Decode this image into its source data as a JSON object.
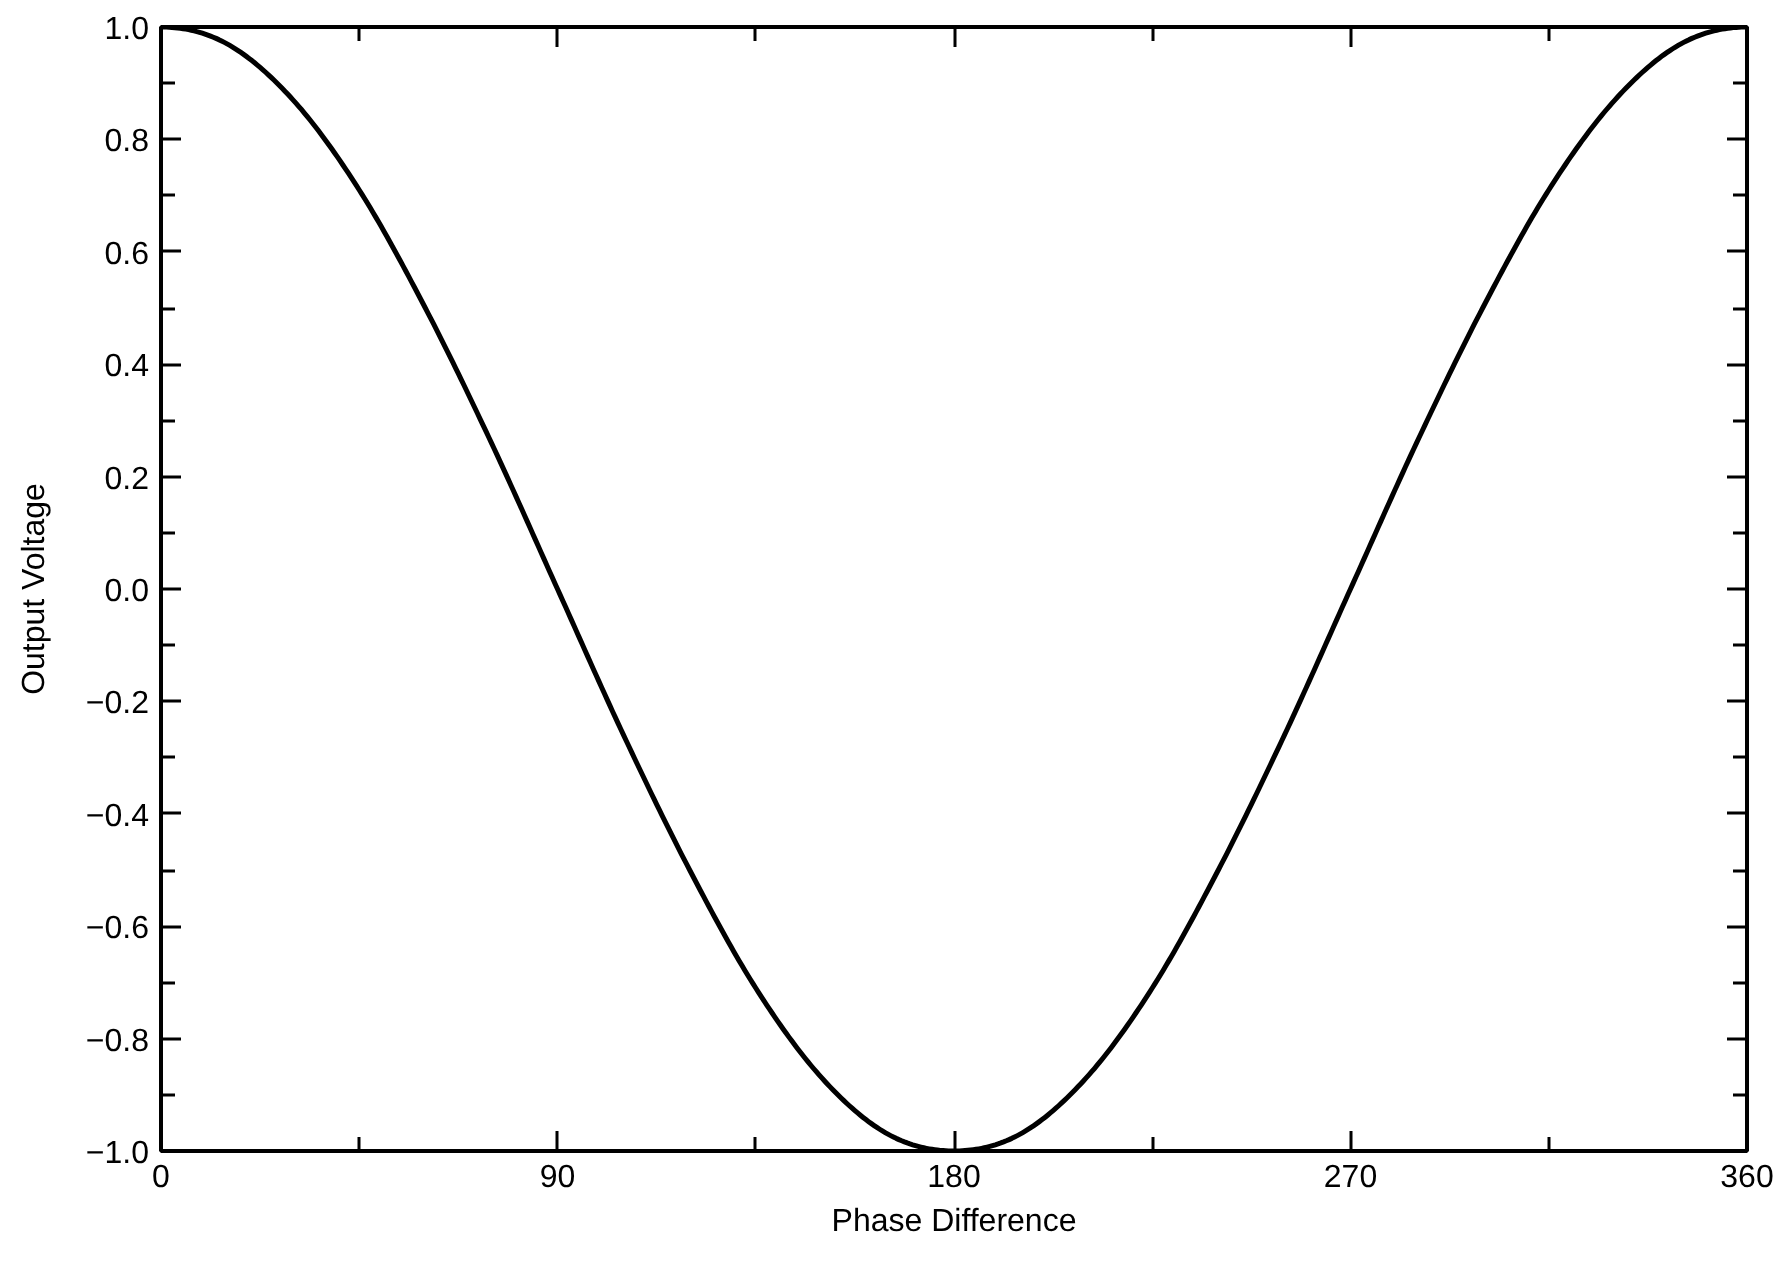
{
  "chart_data": {
    "type": "line",
    "xlabel": "Phase Difference",
    "ylabel": "Output Voltage",
    "x": [
      0,
      15,
      30,
      45,
      60,
      75,
      90,
      105,
      120,
      135,
      150,
      165,
      180,
      195,
      210,
      225,
      240,
      255,
      270,
      285,
      300,
      315,
      330,
      345,
      360
    ],
    "series": [
      {
        "color": "#000000",
        "values": [
          1.0,
          0.97,
          0.87,
          0.71,
          0.5,
          0.26,
          0.0,
          -0.26,
          -0.5,
          -0.71,
          -0.87,
          -0.97,
          -1.0,
          -0.97,
          -0.87,
          -0.71,
          -0.5,
          -0.26,
          0.0,
          0.26,
          0.5,
          0.71,
          0.87,
          0.97,
          1.0
        ]
      }
    ],
    "xlim": [
      0,
      360
    ],
    "xticks": [
      0,
      {
        "value": 45,
        "label": null
      },
      90,
      {
        "value": 135,
        "label": null
      },
      180,
      {
        "value": 225,
        "label": null
      },
      270,
      {
        "value": 315,
        "label": null
      },
      360
    ],
    "ylim": [
      -1.0,
      1.0
    ],
    "yticks": [
      {
        "value": -1.0,
        "label": "−1.0"
      },
      {
        "value": -0.9,
        "label": null
      },
      {
        "value": -0.8,
        "label": "−0.8"
      },
      {
        "value": -0.7,
        "label": null
      },
      {
        "value": -0.6,
        "label": "−0.6"
      },
      {
        "value": -0.5,
        "label": null
      },
      {
        "value": -0.4,
        "label": "−0.4"
      },
      {
        "value": -0.3,
        "label": null
      },
      {
        "value": -0.2,
        "label": "−0.2"
      },
      {
        "value": -0.1,
        "label": null
      },
      {
        "value": 0.0,
        "label": "0.0"
      },
      {
        "value": 0.1,
        "label": null
      },
      {
        "value": 0.2,
        "label": "0.2"
      },
      {
        "value": 0.3,
        "label": null
      },
      {
        "value": 0.4,
        "label": "0.4"
      },
      {
        "value": 0.5,
        "label": null
      },
      {
        "value": 0.6,
        "label": "0.6"
      },
      {
        "value": 0.7,
        "label": null
      },
      {
        "value": 0.8,
        "label": "0.8"
      },
      {
        "value": 0.9,
        "label": null
      },
      {
        "value": 1.0,
        "label": "1.0"
      }
    ],
    "marker": "none",
    "line_style": "solid"
  }
}
